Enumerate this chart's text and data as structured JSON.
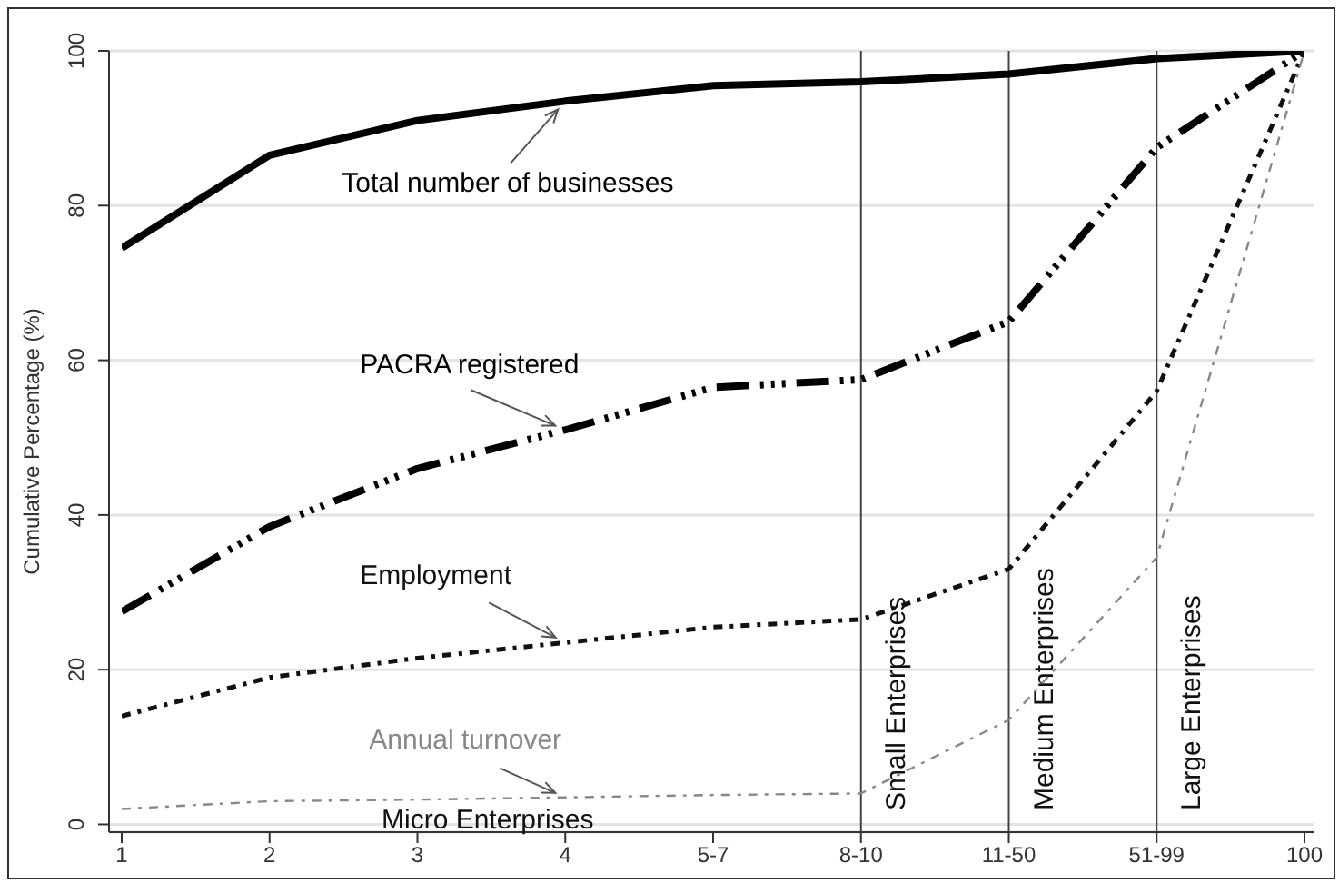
{
  "chart_data": {
    "type": "line",
    "ylabel": "Cumulative Percentage (%)",
    "categories": [
      "1",
      "2",
      "3",
      "4",
      "5-7",
      "8-10",
      "11-50",
      "51-99",
      "100"
    ],
    "series": [
      {
        "name": "Total number of businesses",
        "color": "#000000",
        "line_style": "solid",
        "values": [
          74.5,
          86.5,
          91,
          93.5,
          95.5,
          96,
          97,
          99,
          100
        ]
      },
      {
        "name": "PACRA registered",
        "color": "#000000",
        "line_style": "dashed",
        "values": [
          27.5,
          38.5,
          46,
          51,
          56.5,
          57.5,
          65,
          87.5,
          100
        ]
      },
      {
        "name": "Employment",
        "color": "#111111",
        "line_style": "dotted",
        "values": [
          14,
          19,
          21.5,
          23.5,
          25.5,
          26.5,
          33,
          56,
          100
        ]
      },
      {
        "name": "Annual turnover",
        "color": "#888888",
        "line_style": "dotted",
        "values": [
          2,
          3,
          3.2,
          3.5,
          3.8,
          4,
          13.5,
          34.5,
          100
        ]
      }
    ],
    "ylim": [
      -1,
      100
    ],
    "yticks": [
      0,
      20,
      40,
      60,
      80,
      100
    ],
    "grid": "y",
    "marker": "none",
    "ref_lines": [
      {
        "axis": "x",
        "value": "8-10",
        "label": "Small Enterprises",
        "color": "#444444"
      },
      {
        "axis": "x",
        "value": "11-50",
        "label": "Medium Enterprises",
        "color": "#444444"
      },
      {
        "axis": "x",
        "value": "51-99",
        "label": "Large Enterprises",
        "color": "#444444"
      }
    ],
    "annotations": [
      "Micro Enterprises"
    ]
  }
}
